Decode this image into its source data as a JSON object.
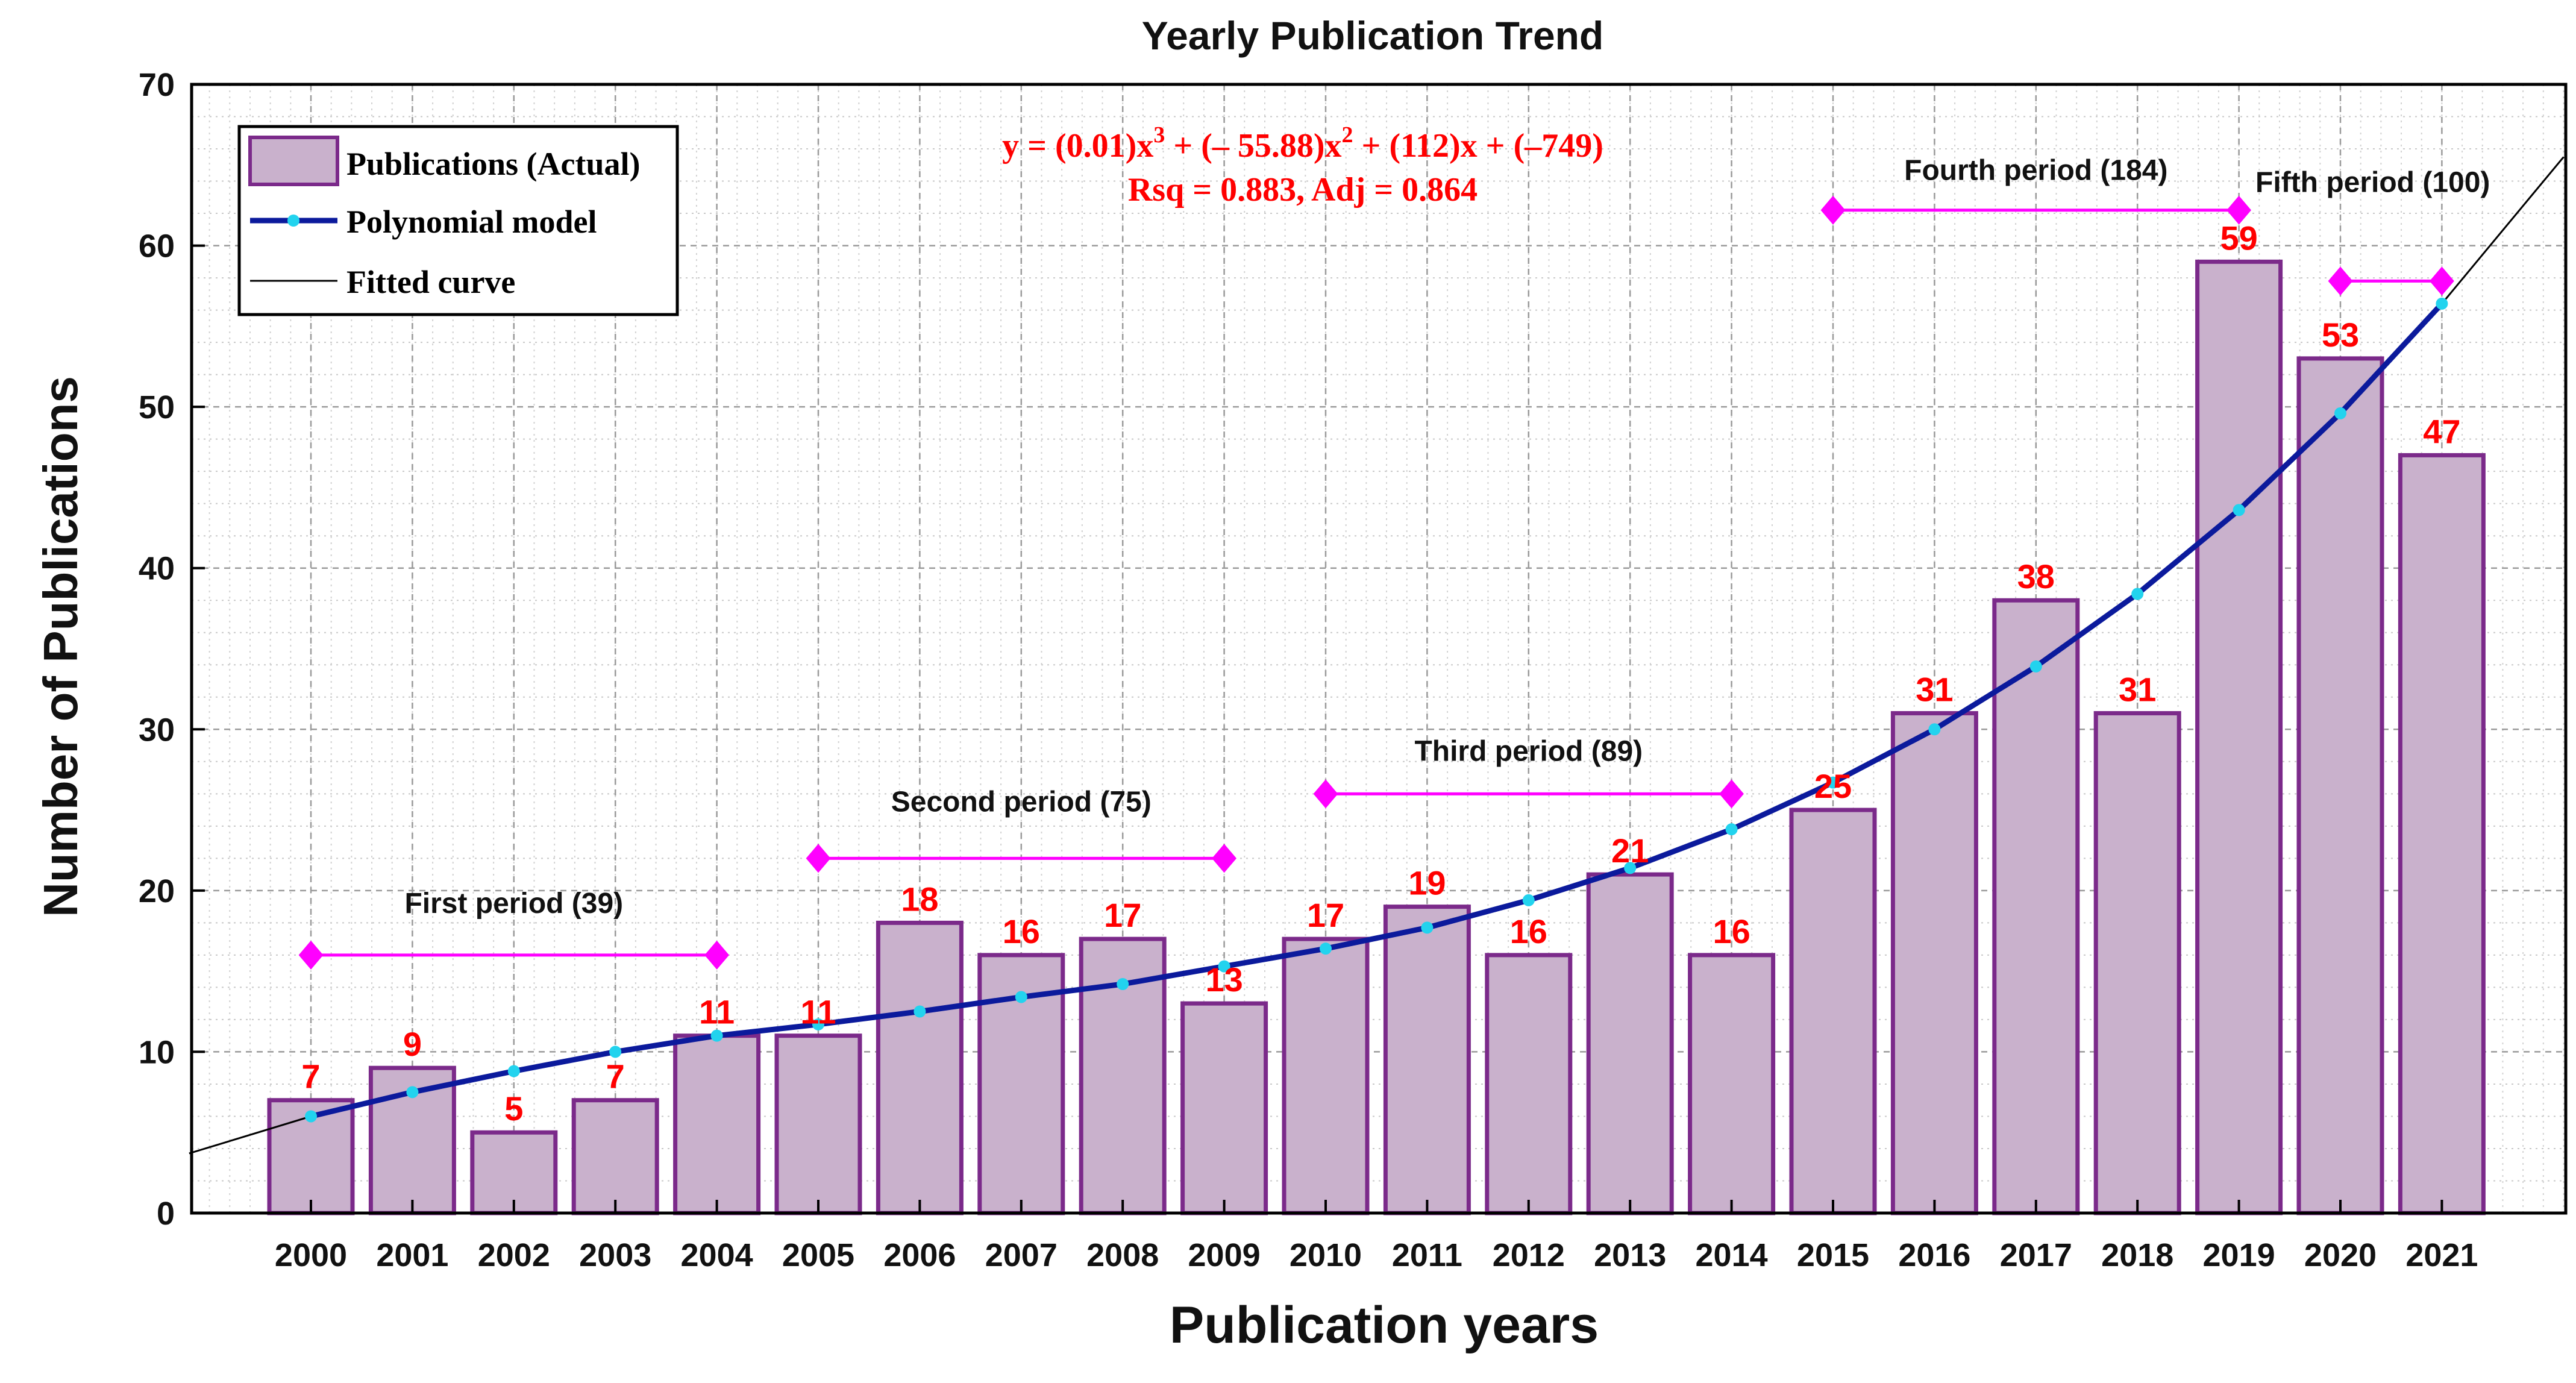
{
  "chart_data": {
    "type": "bar",
    "title": "Yearly Publication Trend",
    "xlabel": "Publication years",
    "ylabel": "Number of Publications",
    "ylim": [
      0,
      70
    ],
    "yticks": [
      0,
      10,
      20,
      30,
      40,
      50,
      60,
      70
    ],
    "grid": true,
    "legend_position": "top-left",
    "categories": [
      "2000",
      "2001",
      "2002",
      "2003",
      "2004",
      "2005",
      "2006",
      "2007",
      "2008",
      "2009",
      "2010",
      "2011",
      "2012",
      "2013",
      "2014",
      "2015",
      "2016",
      "2017",
      "2018",
      "2019",
      "2020",
      "2021"
    ],
    "series": [
      {
        "name": "Publications (Actual)",
        "type": "bar",
        "values": [
          7,
          9,
          5,
          7,
          11,
          11,
          18,
          16,
          17,
          13,
          17,
          19,
          16,
          21,
          16,
          25,
          31,
          38,
          31,
          59,
          53,
          47
        ],
        "color": "#c9b1cc",
        "edge_color": "#7b2a8a"
      },
      {
        "name": "Polynomial model",
        "type": "line",
        "values": [
          6.0,
          7.5,
          8.8,
          10.0,
          11.0,
          11.7,
          12.5,
          13.4,
          14.2,
          15.3,
          16.4,
          17.7,
          19.4,
          21.4,
          23.8,
          26.7,
          30.0,
          33.9,
          38.4,
          43.6,
          49.6,
          56.4
        ],
        "color": "#0b1a9c",
        "marker_color": "#22d3ee"
      },
      {
        "name": "Fitted curve",
        "type": "line",
        "x_range": [
          1998.8,
          2022.2
        ],
        "start_value": 3.7,
        "end_value": 65.5,
        "color": "#000000"
      }
    ],
    "legend": [
      "Publications (Actual)",
      "Polynomial model",
      "Fitted curve"
    ],
    "equation": {
      "base": "y = (0.01)x",
      "exp1": "3",
      "mid": " + (– 55.88)x",
      "exp2": "2",
      "tail": " + (112)x + (–749)",
      "stats": "Rsq = 0.883, Adj = 0.864",
      "color": "#ff0000"
    },
    "annotations": [
      {
        "label": "First period (39)",
        "from": "2000",
        "to": "2004",
        "y": 16
      },
      {
        "label": "Second period (75)",
        "from": "2005",
        "to": "2009",
        "y": 22
      },
      {
        "label": "Third period (89)",
        "from": "2010",
        "to": "2014",
        "y": 26
      },
      {
        "label": "Fourth period (184)",
        "from": "2015",
        "to": "2019",
        "y": 62.2
      },
      {
        "label": "Fifth period (100)",
        "from": "2020",
        "to": "2021",
        "y": 57.8
      }
    ],
    "annotation_color": "#ff00ff",
    "data_label_color": "#ff0000"
  }
}
